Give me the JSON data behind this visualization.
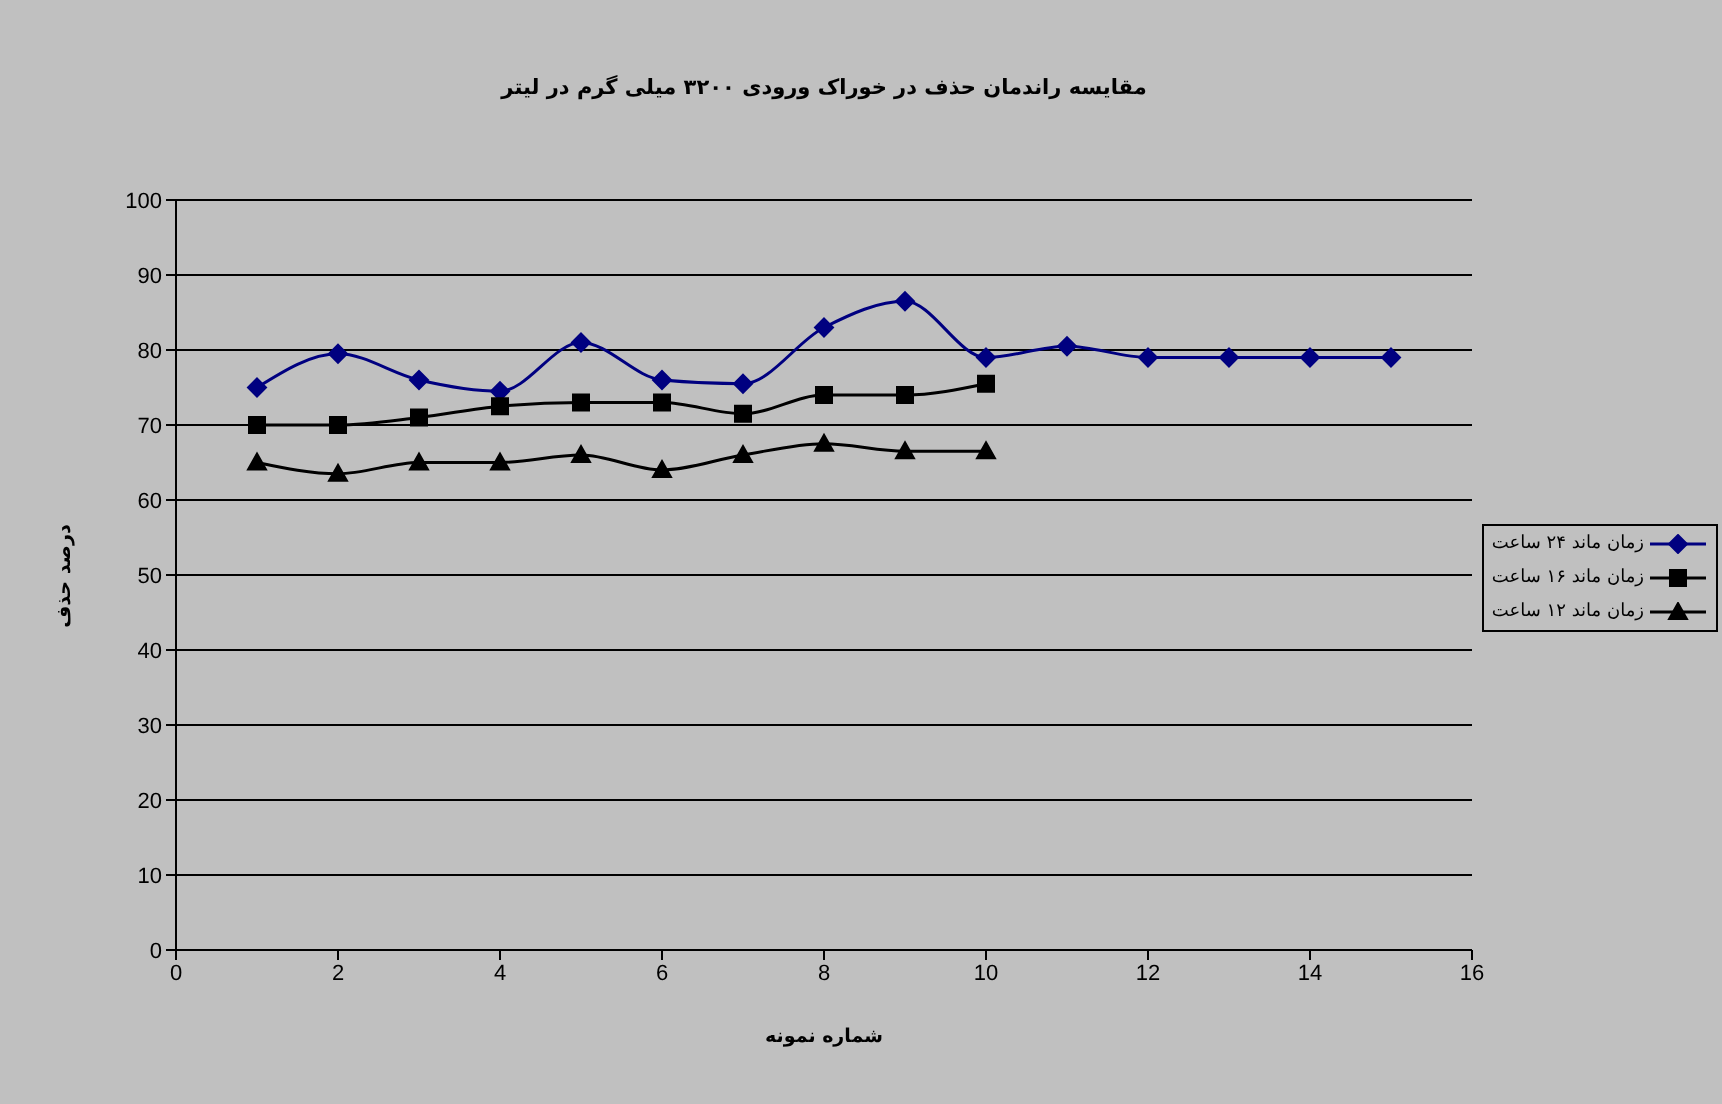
{
  "chart_data": {
    "type": "line",
    "title": "مقایسه راندمان حذف در خوراک ورودی ۳۲۰۰ میلی گرم در لیتر",
    "xlabel": "شماره نمونه",
    "ylabel": "درصد حذف",
    "x": [
      1,
      2,
      3,
      4,
      5,
      6,
      7,
      8,
      9,
      10,
      11,
      12,
      13,
      14,
      15
    ],
    "series": [
      {
        "name": "زمان ماند ۲۴ ساعت",
        "color": "#000080",
        "marker": "diamond",
        "values": [
          75,
          79.5,
          76,
          74.5,
          81,
          76,
          75.5,
          83,
          86.5,
          79,
          80.5,
          79,
          79,
          79,
          79
        ]
      },
      {
        "name": "زمان ماند ۱۶ ساعت",
        "color": "#000000",
        "marker": "square",
        "x": [
          1,
          2,
          3,
          4,
          5,
          6,
          7,
          8,
          9,
          10
        ],
        "values": [
          70,
          70,
          71,
          72.5,
          73,
          73,
          71.5,
          74,
          74,
          75.5
        ]
      },
      {
        "name": "زمان ماند ۱۲ ساعت",
        "color": "#000000",
        "marker": "triangle",
        "x": [
          1,
          2,
          3,
          4,
          5,
          6,
          7,
          8,
          9,
          10
        ],
        "values": [
          65,
          63.5,
          65,
          65,
          66,
          64,
          66,
          67.5,
          66.5,
          66.5
        ]
      }
    ],
    "xlim": [
      0,
      16
    ],
    "xticks": [
      0,
      2,
      4,
      6,
      8,
      10,
      12,
      14,
      16
    ],
    "ylim": [
      0,
      100
    ],
    "yticks": [
      0,
      10,
      20,
      30,
      40,
      50,
      60,
      70,
      80,
      90,
      100
    ],
    "grid": "y",
    "legend": "right",
    "line_style": "solid"
  }
}
